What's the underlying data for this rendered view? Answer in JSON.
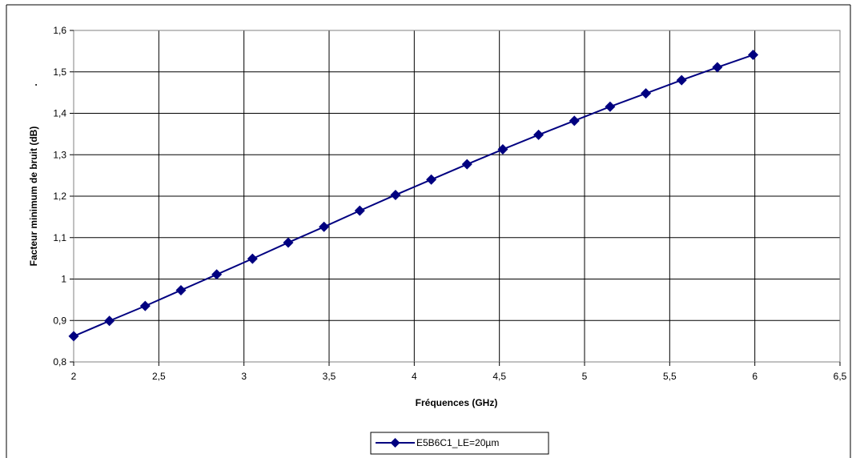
{
  "chart_data": {
    "type": "line",
    "title": "",
    "xlabel": "Fréquences (GHz)",
    "ylabel": "Facteur minimum de bruit (dB)",
    "ylabel_marker": ".",
    "xlim": [
      2,
      6.5
    ],
    "ylim": [
      0.8,
      1.6
    ],
    "x_ticks": [
      "2",
      "2,5",
      "3",
      "3,5",
      "4",
      "4,5",
      "5",
      "5,5",
      "6",
      "6,5"
    ],
    "x_tick_values": [
      2,
      2.5,
      3,
      3.5,
      4,
      4.5,
      5,
      5.5,
      6,
      6.5
    ],
    "y_ticks": [
      "0,8",
      "0,9",
      "1",
      "1,1",
      "1,2",
      "1,3",
      "1,4",
      "1,5",
      "1,6"
    ],
    "y_tick_values": [
      0.8,
      0.9,
      1.0,
      1.1,
      1.2,
      1.3,
      1.4,
      1.5,
      1.6
    ],
    "grid": true,
    "legend_position": "bottom-center",
    "line_color": "#000080",
    "series": [
      {
        "name": "E5B6C1_LE=20µm",
        "x": [
          2.0,
          2.21,
          2.42,
          2.63,
          2.84,
          3.05,
          3.26,
          3.47,
          3.68,
          3.89,
          4.1,
          4.31,
          4.52,
          4.73,
          4.94,
          5.15,
          5.36,
          5.57,
          5.78,
          5.99
        ],
        "values": [
          0.862,
          0.899,
          0.935,
          0.973,
          1.011,
          1.049,
          1.088,
          1.126,
          1.165,
          1.203,
          1.24,
          1.277,
          1.313,
          1.348,
          1.382,
          1.416,
          1.448,
          1.48,
          1.511,
          1.541
        ]
      }
    ]
  }
}
